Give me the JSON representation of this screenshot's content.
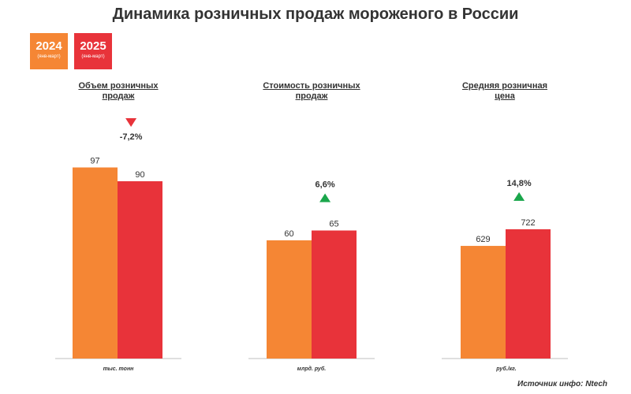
{
  "chart_data": [
    {
      "type": "bar",
      "title": "Объем розничных продаж",
      "unit": "тыс. тонн",
      "series": [
        {
          "name": "2024",
          "values": [
            97
          ]
        },
        {
          "name": "2025",
          "values": [
            90
          ]
        }
      ],
      "change": {
        "label": "-7,2%",
        "direction": "down"
      },
      "ylim": [
        0,
        100
      ]
    },
    {
      "type": "bar",
      "title": "Стоимость розничных продаж",
      "unit": "млрд. руб.",
      "series": [
        {
          "name": "2024",
          "values": [
            60
          ]
        },
        {
          "name": "2025",
          "values": [
            65
          ]
        }
      ],
      "change": {
        "label": "6,6%",
        "direction": "up"
      },
      "ylim": [
        0,
        100
      ]
    },
    {
      "type": "bar",
      "title": "Средняя розничная цена",
      "unit": "руб./кг.",
      "series": [
        {
          "name": "2024",
          "values": [
            629
          ]
        },
        {
          "name": "2025",
          "values": [
            722
          ]
        }
      ],
      "change": {
        "label": "14,8%",
        "direction": "up"
      },
      "ylim": [
        0,
        1100
      ]
    }
  ],
  "header": {
    "title": "Динамика розничных продаж мороженого в России"
  },
  "legend": [
    {
      "year": "2024",
      "period": "(янв-март)",
      "color": "#f58634"
    },
    {
      "year": "2025",
      "period": "(янв-март)",
      "color": "#e8333a"
    }
  ],
  "panels": [
    {
      "title_line1": "Объем розничных",
      "title_line2": "продаж"
    },
    {
      "title_line1": "Стоимость розничных",
      "title_line2": "продаж"
    },
    {
      "title_line1": "Средняя розничная",
      "title_line2": "цена"
    }
  ],
  "colors": {
    "up": "#1aa64b",
    "down": "#e8333a",
    "axis": "#bfbfbf",
    "label": "#333333"
  },
  "footer": {
    "source": "Источник инфо: Ntech"
  }
}
